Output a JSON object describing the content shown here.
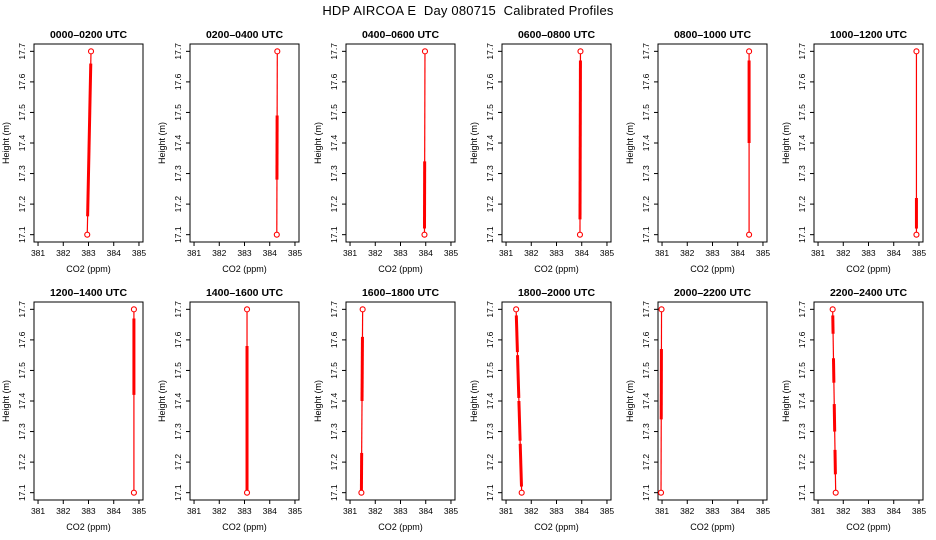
{
  "title": "HDP AIRCOA E  Day 080715  Calibrated Profiles",
  "chart_data": {
    "type": "line",
    "layout": "small-multiples 2 rows x 6 columns",
    "title": "HDP AIRCOA E  Day 080715  Calibrated Profiles",
    "xlabel": "CO2 (ppm)",
    "ylabel": "Height (m)",
    "xlim": [
      381,
      385
    ],
    "ylim": [
      17.1,
      17.7
    ],
    "x_ticks": [
      381,
      382,
      383,
      384,
      385
    ],
    "x_tick_labels": [
      "381",
      "382",
      "383",
      "384",
      "385"
    ],
    "y_ticks": [
      17.1,
      17.2,
      17.3,
      17.4,
      17.5,
      17.6,
      17.7
    ],
    "y_tick_labels": [
      "17.1",
      "17.2",
      "17.3",
      "17.4",
      "17.5",
      "17.6",
      "17.7"
    ],
    "grid": false,
    "legend": false,
    "marker": "open-circle",
    "line_color": "#ff0000",
    "axis_color": "#000000",
    "panels": [
      {
        "title": "0000–0200 UTC",
        "points": [
          {
            "height": 17.1,
            "co2": 382.95
          },
          {
            "height": 17.7,
            "co2": 383.1
          }
        ],
        "thick_segments": [
          [
            17.16,
            17.66
          ]
        ]
      },
      {
        "title": "0200–0400 UTC",
        "points": [
          {
            "height": 17.1,
            "co2": 384.28
          },
          {
            "height": 17.7,
            "co2": 384.3
          }
        ],
        "thick_segments": [
          [
            17.28,
            17.49
          ]
        ]
      },
      {
        "title": "0400–0600 UTC",
        "points": [
          {
            "height": 17.1,
            "co2": 383.95
          },
          {
            "height": 17.7,
            "co2": 383.97
          }
        ],
        "thick_segments": [
          [
            17.12,
            17.34
          ]
        ]
      },
      {
        "title": "0600–0800 UTC",
        "points": [
          {
            "height": 17.1,
            "co2": 383.93
          },
          {
            "height": 17.7,
            "co2": 383.95
          }
        ],
        "thick_segments": [
          [
            17.15,
            17.67
          ]
        ]
      },
      {
        "title": "0800–1000 UTC",
        "points": [
          {
            "height": 17.1,
            "co2": 384.45
          },
          {
            "height": 17.7,
            "co2": 384.45
          }
        ],
        "thick_segments": [
          [
            17.4,
            17.67
          ]
        ]
      },
      {
        "title": "1000–1200 UTC",
        "points": [
          {
            "height": 17.1,
            "co2": 384.9
          },
          {
            "height": 17.7,
            "co2": 384.9
          }
        ],
        "thick_segments": [
          [
            17.12,
            17.22
          ]
        ]
      },
      {
        "title": "1200–1400 UTC",
        "points": [
          {
            "height": 17.1,
            "co2": 384.8
          },
          {
            "height": 17.7,
            "co2": 384.8
          }
        ],
        "thick_segments": [
          [
            17.42,
            17.67
          ]
        ]
      },
      {
        "title": "1400–1600 UTC",
        "points": [
          {
            "height": 17.1,
            "co2": 383.1
          },
          {
            "height": 17.7,
            "co2": 383.1
          }
        ],
        "thick_segments": [
          [
            17.1,
            17.58
          ]
        ]
      },
      {
        "title": "1600–1800 UTC",
        "points": [
          {
            "height": 17.1,
            "co2": 381.45
          },
          {
            "height": 17.7,
            "co2": 381.5
          }
        ],
        "thick_segments": [
          [
            17.1,
            17.23
          ],
          [
            17.4,
            17.61
          ]
        ]
      },
      {
        "title": "1800–2000 UTC",
        "points": [
          {
            "height": 17.1,
            "co2": 381.62
          },
          {
            "height": 17.7,
            "co2": 381.4
          }
        ],
        "thick_segments": [
          [
            17.12,
            17.26
          ],
          [
            17.27,
            17.4
          ],
          [
            17.41,
            17.55
          ],
          [
            17.56,
            17.68
          ]
        ]
      },
      {
        "title": "2000–2200 UTC",
        "points": [
          {
            "height": 17.1,
            "co2": 380.96
          },
          {
            "height": 17.7,
            "co2": 380.98
          }
        ],
        "thick_segments": [
          [
            17.34,
            17.57
          ]
        ]
      },
      {
        "title": "2200–2400 UTC",
        "points": [
          {
            "height": 17.1,
            "co2": 381.7
          },
          {
            "height": 17.7,
            "co2": 381.58
          }
        ],
        "thick_segments": [
          [
            17.16,
            17.24
          ],
          [
            17.3,
            17.39
          ],
          [
            17.46,
            17.54
          ],
          [
            17.62,
            17.68
          ]
        ]
      }
    ]
  }
}
